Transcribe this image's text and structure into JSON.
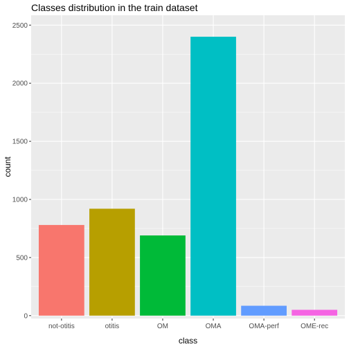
{
  "chart_data": {
    "type": "bar",
    "title": "Classes distribution in the train dataset",
    "xlabel": "class",
    "ylabel": "count",
    "categories": [
      "not-otitis",
      "otitis",
      "OM",
      "OMA",
      "OMA-perf",
      "OME-rec"
    ],
    "values": [
      780,
      920,
      690,
      2400,
      85,
      50
    ],
    "colors": [
      "#F8766D",
      "#B79F00",
      "#00BA38",
      "#00BFC4",
      "#619CFF",
      "#F564E3"
    ],
    "ylim": [
      0,
      2500
    ],
    "yticks": [
      0,
      500,
      1000,
      1500,
      2000,
      2500
    ],
    "grid": true,
    "legend": "none",
    "panel_background": "#EBEBEB"
  }
}
